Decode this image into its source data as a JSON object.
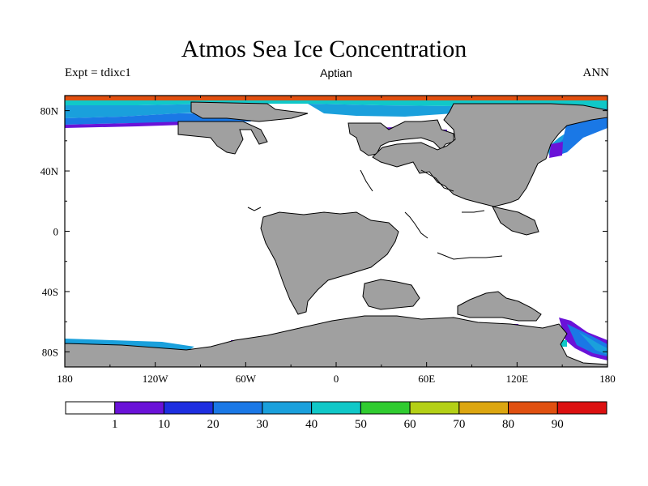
{
  "header": {
    "title": "Atmos Sea Ice Concentration",
    "left": "Expt = tdixc1",
    "center": "Aptian",
    "right": "ANN"
  },
  "axes": {
    "lon_ticks": [
      {
        "value": -180,
        "label": "180"
      },
      {
        "value": -120,
        "label": "120W"
      },
      {
        "value": -60,
        "label": "60W"
      },
      {
        "value": 0,
        "label": "0"
      },
      {
        "value": 60,
        "label": "60E"
      },
      {
        "value": 120,
        "label": "120E"
      },
      {
        "value": 180,
        "label": "180"
      }
    ],
    "lat_ticks": [
      {
        "value": 80,
        "label": "80N"
      },
      {
        "value": 40,
        "label": "40N"
      },
      {
        "value": 0,
        "label": "0"
      },
      {
        "value": -40,
        "label": "40S"
      },
      {
        "value": -80,
        "label": "80S"
      }
    ],
    "lon_range": [
      -180,
      180
    ],
    "lat_range": [
      -90,
      90
    ]
  },
  "colorbar": {
    "colors": [
      "#ffffff",
      "#6a12d8",
      "#1e2ee0",
      "#1a78e6",
      "#1aa0dc",
      "#10c8c8",
      "#30cc30",
      "#b4d016",
      "#dca610",
      "#e05010",
      "#dc1010"
    ],
    "labels": [
      "1",
      "10",
      "20",
      "30",
      "40",
      "50",
      "60",
      "70",
      "80",
      "90"
    ]
  },
  "map_colors": {
    "land": "#a0a0a0",
    "ocean": "#ffffff"
  }
}
